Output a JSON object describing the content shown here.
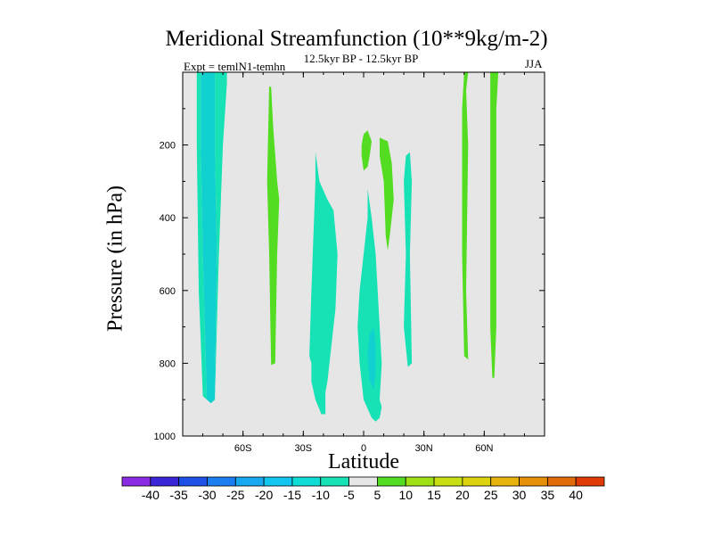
{
  "chart_data": {
    "type": "filled-contour",
    "title": "Meridional Streamfunction (10**9kg/m-2)",
    "subtitle": "12.5kyr BP - 12.5kyr BP",
    "experiment_label": "Expt = temlN1-temhn",
    "season": "JJA",
    "xlabel": "Latitude",
    "ylabel": "Pressure (in hPa)",
    "xlim": [
      -90,
      90
    ],
    "ylim": [
      1000,
      0
    ],
    "background_color": "#e6e6e6",
    "x_ticks": [
      {
        "value": -60,
        "label": "60S"
      },
      {
        "value": -30,
        "label": "30S"
      },
      {
        "value": 0,
        "label": "0"
      },
      {
        "value": 30,
        "label": "30N"
      },
      {
        "value": 60,
        "label": "60N"
      }
    ],
    "y_ticks": [
      {
        "value": 200,
        "label": "200"
      },
      {
        "value": 400,
        "label": "400"
      },
      {
        "value": 600,
        "label": "600"
      },
      {
        "value": 800,
        "label": "800"
      },
      {
        "value": 1000,
        "label": "1000"
      }
    ],
    "colorbar": {
      "labels": [
        "-40",
        "-35",
        "-30",
        "-25",
        "-20",
        "-15",
        "-10",
        "-5",
        "5",
        "10",
        "15",
        "20",
        "25",
        "30",
        "35",
        "40"
      ],
      "colors": [
        "#8a2be2",
        "#3a24d8",
        "#1e50e6",
        "#1a7ef0",
        "#18a8f0",
        "#10c6f0",
        "#10dcd6",
        "#17e2b6",
        "#e6e6e6",
        "#54dc22",
        "#9ee014",
        "#c6de12",
        "#dcd20e",
        "#e6b40c",
        "#e6900a",
        "#e26a08",
        "#e03a06"
      ]
    },
    "regions": [
      {
        "level": "-10 to -5",
        "color": "#10d0d0",
        "points": [
          [
            -81,
            0
          ],
          [
            -74,
            0
          ],
          [
            -74,
            200
          ],
          [
            -73,
            500
          ],
          [
            -74,
            900
          ],
          [
            -76,
            910
          ],
          [
            -78,
            900
          ],
          [
            -80,
            500
          ],
          [
            -81,
            200
          ]
        ]
      },
      {
        "level": "-5 to 0",
        "color": "#17e2b6",
        "points": [
          [
            -83,
            0
          ],
          [
            -81,
            0
          ],
          [
            -81,
            200
          ],
          [
            -80,
            500
          ],
          [
            -78,
            900
          ],
          [
            -80,
            890
          ],
          [
            -82,
            600
          ],
          [
            -83,
            200
          ]
        ]
      },
      {
        "level": "-5 to 0",
        "color": "#17e2b6",
        "points": [
          [
            -74,
            0
          ],
          [
            -68,
            0
          ],
          [
            -68,
            30
          ],
          [
            -70,
            200
          ],
          [
            -72,
            500
          ],
          [
            -73,
            700
          ],
          [
            -74,
            900
          ],
          [
            -73,
            500
          ],
          [
            -74,
            200
          ]
        ]
      },
      {
        "level": "5 to 10",
        "color": "#54dc22",
        "points": [
          [
            -47,
            40
          ],
          [
            -46,
            40
          ],
          [
            -45,
            150
          ],
          [
            -43,
            300
          ],
          [
            -42,
            350
          ],
          [
            -43,
            500
          ],
          [
            -44,
            800
          ],
          [
            -46,
            805
          ],
          [
            -47,
            500
          ],
          [
            -48,
            300
          ]
        ]
      },
      {
        "level": "-5 to 0",
        "color": "#17e2b6",
        "points": [
          [
            -24,
            220
          ],
          [
            -22,
            300
          ],
          [
            -18,
            350
          ],
          [
            -15,
            380
          ],
          [
            -13,
            500
          ],
          [
            -14,
            650
          ],
          [
            -16,
            750
          ],
          [
            -18,
            850
          ],
          [
            -19,
            880
          ],
          [
            -19,
            940
          ],
          [
            -21,
            940
          ],
          [
            -24,
            900
          ],
          [
            -26,
            850
          ],
          [
            -26,
            800
          ],
          [
            -27,
            780
          ],
          [
            -26,
            600
          ],
          [
            -24,
            300
          ]
        ]
      },
      {
        "level": "-5 to 0",
        "color": "#17e2b6",
        "points": [
          [
            2,
            320
          ],
          [
            4,
            400
          ],
          [
            6,
            500
          ],
          [
            8,
            700
          ],
          [
            9,
            800
          ],
          [
            8,
            900
          ],
          [
            9,
            920
          ],
          [
            8,
            950
          ],
          [
            6,
            960
          ],
          [
            4,
            950
          ],
          [
            0,
            900
          ],
          [
            -2,
            800
          ],
          [
            -3,
            700
          ],
          [
            -2,
            600
          ],
          [
            0,
            500
          ],
          [
            2,
            400
          ]
        ]
      },
      {
        "level": "-10 to -5",
        "color": "#10d0d0",
        "points": [
          [
            3,
            720
          ],
          [
            5,
            700
          ],
          [
            6,
            750
          ],
          [
            6,
            830
          ],
          [
            5,
            870
          ],
          [
            3,
            850
          ],
          [
            2,
            780
          ]
        ]
      },
      {
        "level": "5 to 10",
        "color": "#54dc22",
        "points": [
          [
            0,
            170
          ],
          [
            2,
            160
          ],
          [
            4,
            190
          ],
          [
            3,
            230
          ],
          [
            2,
            260
          ],
          [
            0,
            270
          ],
          [
            -1,
            230
          ],
          [
            -1,
            200
          ]
        ]
      },
      {
        "level": "5 to 10",
        "color": "#54dc22",
        "points": [
          [
            8,
            180
          ],
          [
            12,
            190
          ],
          [
            14,
            250
          ],
          [
            15,
            350
          ],
          [
            13,
            450
          ],
          [
            12,
            490
          ],
          [
            11,
            450
          ],
          [
            10,
            300
          ],
          [
            8,
            230
          ]
        ]
      },
      {
        "level": "-5 to 0",
        "color": "#17e2b6",
        "points": [
          [
            21,
            230
          ],
          [
            23,
            220
          ],
          [
            24,
            300
          ],
          [
            23,
            500
          ],
          [
            24,
            800
          ],
          [
            22,
            810
          ],
          [
            20,
            700
          ],
          [
            21,
            500
          ],
          [
            20,
            300
          ]
        ]
      },
      {
        "level": "5 to 10",
        "color": "#54dc22",
        "points": [
          [
            50,
            0
          ],
          [
            52,
            0
          ],
          [
            51,
            50
          ],
          [
            52,
            200
          ],
          [
            51,
            600
          ],
          [
            52,
            790
          ],
          [
            50,
            780
          ],
          [
            49,
            500
          ],
          [
            49,
            100
          ]
        ]
      },
      {
        "level": "5 to 10",
        "color": "#54dc22",
        "points": [
          [
            63,
            0
          ],
          [
            67,
            0
          ],
          [
            66,
            100
          ],
          [
            66,
            400
          ],
          [
            66,
            700
          ],
          [
            65,
            840
          ],
          [
            64,
            840
          ],
          [
            63,
            700
          ],
          [
            63,
            400
          ],
          [
            63,
            100
          ]
        ]
      }
    ]
  }
}
